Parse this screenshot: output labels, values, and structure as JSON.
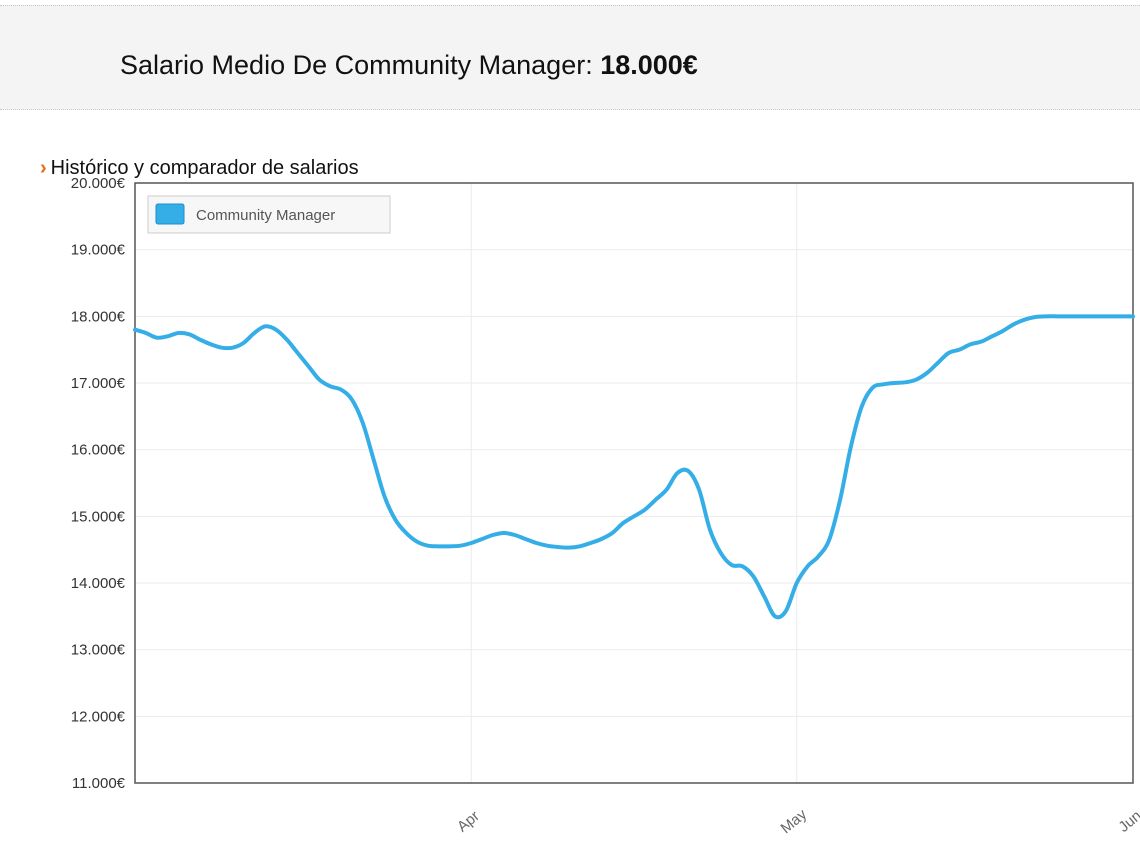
{
  "header": {
    "title_prefix": "Salario Medio De Community Manager: ",
    "title_value": "18.000€"
  },
  "section": {
    "bullet": "›",
    "title": "Histórico y comparador de salarios"
  },
  "colors": {
    "series": "#35aee8",
    "accent": "#e86a10",
    "header_bg": "#f4f4f4"
  },
  "chart_data": {
    "type": "line",
    "title": "",
    "xlabel": "",
    "ylabel": "",
    "ylim": [
      11000,
      20000
    ],
    "xlim": [
      "2016-03-01",
      "2016-06-01"
    ],
    "y_ticks": [
      {
        "value": 11000,
        "label": "11.000€"
      },
      {
        "value": 12000,
        "label": "12.000€"
      },
      {
        "value": 13000,
        "label": "13.000€"
      },
      {
        "value": 14000,
        "label": "14.000€"
      },
      {
        "value": 15000,
        "label": "15.000€"
      },
      {
        "value": 16000,
        "label": "16.000€"
      },
      {
        "value": 17000,
        "label": "17.000€"
      },
      {
        "value": 18000,
        "label": "18.000€"
      },
      {
        "value": 19000,
        "label": "19.000€"
      },
      {
        "value": 20000,
        "label": "20.000€"
      }
    ],
    "x_ticks": [
      {
        "value": "2016-04-01",
        "label": "Apr"
      },
      {
        "value": "2016-05-01",
        "label": "May"
      },
      {
        "value": "2016-06-01",
        "label": "Jun"
      }
    ],
    "grid": true,
    "legend": "top-left",
    "series": [
      {
        "name": "Community Manager",
        "points": [
          [
            "2016-03-01",
            17800
          ],
          [
            "2016-03-02",
            17750
          ],
          [
            "2016-03-03",
            17680
          ],
          [
            "2016-03-04",
            17700
          ],
          [
            "2016-03-05",
            17750
          ],
          [
            "2016-03-06",
            17730
          ],
          [
            "2016-03-07",
            17650
          ],
          [
            "2016-03-08",
            17580
          ],
          [
            "2016-03-09",
            17530
          ],
          [
            "2016-03-10",
            17530
          ],
          [
            "2016-03-11",
            17600
          ],
          [
            "2016-03-12",
            17750
          ],
          [
            "2016-03-13",
            17850
          ],
          [
            "2016-03-14",
            17800
          ],
          [
            "2016-03-15",
            17650
          ],
          [
            "2016-03-16",
            17450
          ],
          [
            "2016-03-17",
            17250
          ],
          [
            "2016-03-18",
            17050
          ],
          [
            "2016-03-19",
            16950
          ],
          [
            "2016-03-20",
            16900
          ],
          [
            "2016-03-21",
            16750
          ],
          [
            "2016-03-22",
            16400
          ],
          [
            "2016-03-23",
            15850
          ],
          [
            "2016-03-24",
            15300
          ],
          [
            "2016-03-25",
            14950
          ],
          [
            "2016-03-26",
            14750
          ],
          [
            "2016-03-27",
            14620
          ],
          [
            "2016-03-28",
            14560
          ],
          [
            "2016-03-29",
            14550
          ],
          [
            "2016-03-30",
            14550
          ],
          [
            "2016-03-31",
            14560
          ],
          [
            "2016-04-01",
            14600
          ],
          [
            "2016-04-02",
            14660
          ],
          [
            "2016-04-03",
            14720
          ],
          [
            "2016-04-04",
            14750
          ],
          [
            "2016-04-05",
            14720
          ],
          [
            "2016-04-06",
            14660
          ],
          [
            "2016-04-07",
            14600
          ],
          [
            "2016-04-08",
            14560
          ],
          [
            "2016-04-09",
            14540
          ],
          [
            "2016-04-10",
            14530
          ],
          [
            "2016-04-11",
            14550
          ],
          [
            "2016-04-12",
            14600
          ],
          [
            "2016-04-13",
            14660
          ],
          [
            "2016-04-14",
            14750
          ],
          [
            "2016-04-15",
            14900
          ],
          [
            "2016-04-16",
            15000
          ],
          [
            "2016-04-17",
            15100
          ],
          [
            "2016-04-18",
            15250
          ],
          [
            "2016-04-19",
            15400
          ],
          [
            "2016-04-20",
            15650
          ],
          [
            "2016-04-21",
            15680
          ],
          [
            "2016-04-22",
            15400
          ],
          [
            "2016-04-23",
            14800
          ],
          [
            "2016-04-24",
            14450
          ],
          [
            "2016-04-25",
            14270
          ],
          [
            "2016-04-26",
            14250
          ],
          [
            "2016-04-27",
            14100
          ],
          [
            "2016-04-28",
            13800
          ],
          [
            "2016-04-29",
            13500
          ],
          [
            "2016-04-30",
            13580
          ],
          [
            "2016-05-01",
            14000
          ],
          [
            "2016-05-02",
            14250
          ],
          [
            "2016-05-03",
            14400
          ],
          [
            "2016-05-04",
            14650
          ],
          [
            "2016-05-05",
            15250
          ],
          [
            "2016-05-06",
            16050
          ],
          [
            "2016-05-07",
            16650
          ],
          [
            "2016-05-08",
            16930
          ],
          [
            "2016-05-09",
            16980
          ],
          [
            "2016-05-10",
            17000
          ],
          [
            "2016-05-11",
            17010
          ],
          [
            "2016-05-12",
            17050
          ],
          [
            "2016-05-13",
            17150
          ],
          [
            "2016-05-14",
            17300
          ],
          [
            "2016-05-15",
            17450
          ],
          [
            "2016-05-16",
            17500
          ],
          [
            "2016-05-17",
            17580
          ],
          [
            "2016-05-18",
            17620
          ],
          [
            "2016-05-19",
            17700
          ],
          [
            "2016-05-20",
            17780
          ],
          [
            "2016-05-21",
            17880
          ],
          [
            "2016-05-22",
            17950
          ],
          [
            "2016-05-23",
            17990
          ],
          [
            "2016-05-24",
            18000
          ],
          [
            "2016-05-25",
            18000
          ],
          [
            "2016-05-26",
            18000
          ],
          [
            "2016-05-27",
            18000
          ],
          [
            "2016-05-28",
            18000
          ],
          [
            "2016-05-29",
            18000
          ],
          [
            "2016-05-30",
            18000
          ],
          [
            "2016-05-31",
            18000
          ],
          [
            "2016-06-01",
            18000
          ]
        ]
      }
    ]
  }
}
